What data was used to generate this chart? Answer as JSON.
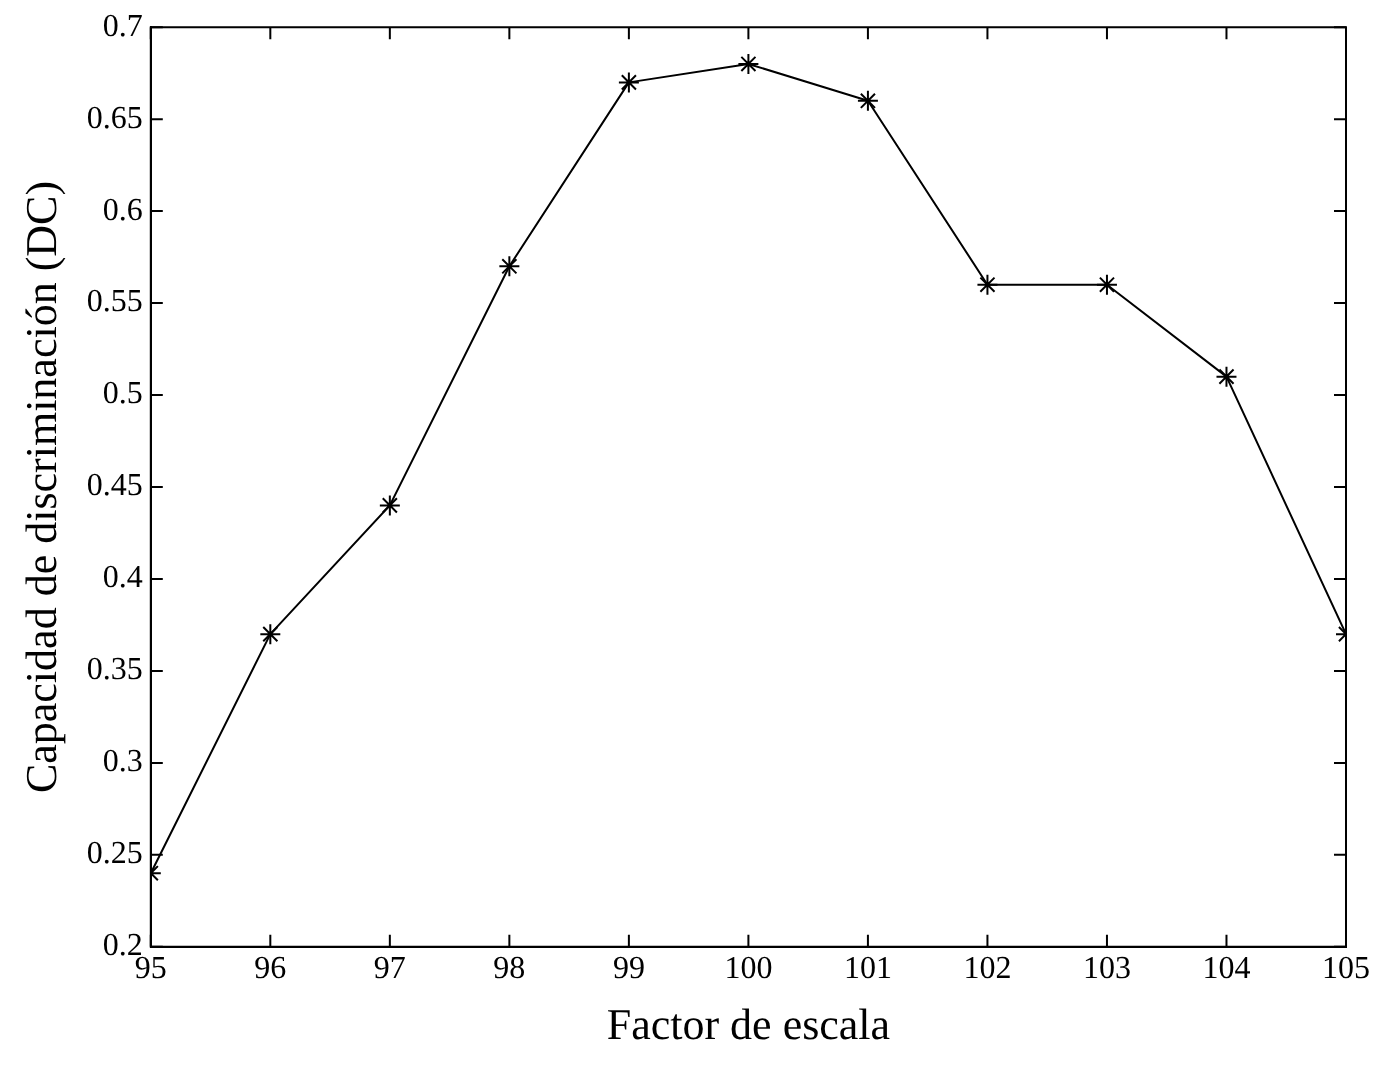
{
  "chart_data": {
    "type": "line",
    "xlabel": "Factor de escala",
    "ylabel": "Capacidad de discriminación (DC)",
    "x": [
      95,
      96,
      97,
      98,
      99,
      100,
      101,
      102,
      103,
      104,
      105
    ],
    "series": [
      {
        "color": "#000000",
        "values": [
          0.24,
          0.37,
          0.44,
          0.57,
          0.67,
          0.68,
          0.66,
          0.56,
          0.56,
          0.51,
          0.37
        ]
      }
    ],
    "xlim": [
      95,
      105
    ],
    "xticks": [
      95,
      96,
      97,
      98,
      99,
      100,
      101,
      102,
      103,
      104,
      105
    ],
    "ylim": [
      0.2,
      0.7
    ],
    "yticks": [
      0.2,
      0.25,
      0.3,
      0.35,
      0.4,
      0.45,
      0.5,
      0.55,
      0.6,
      0.65,
      0.7
    ],
    "grid": false,
    "legend": false,
    "marker": "cross",
    "line_style": "solid"
  }
}
